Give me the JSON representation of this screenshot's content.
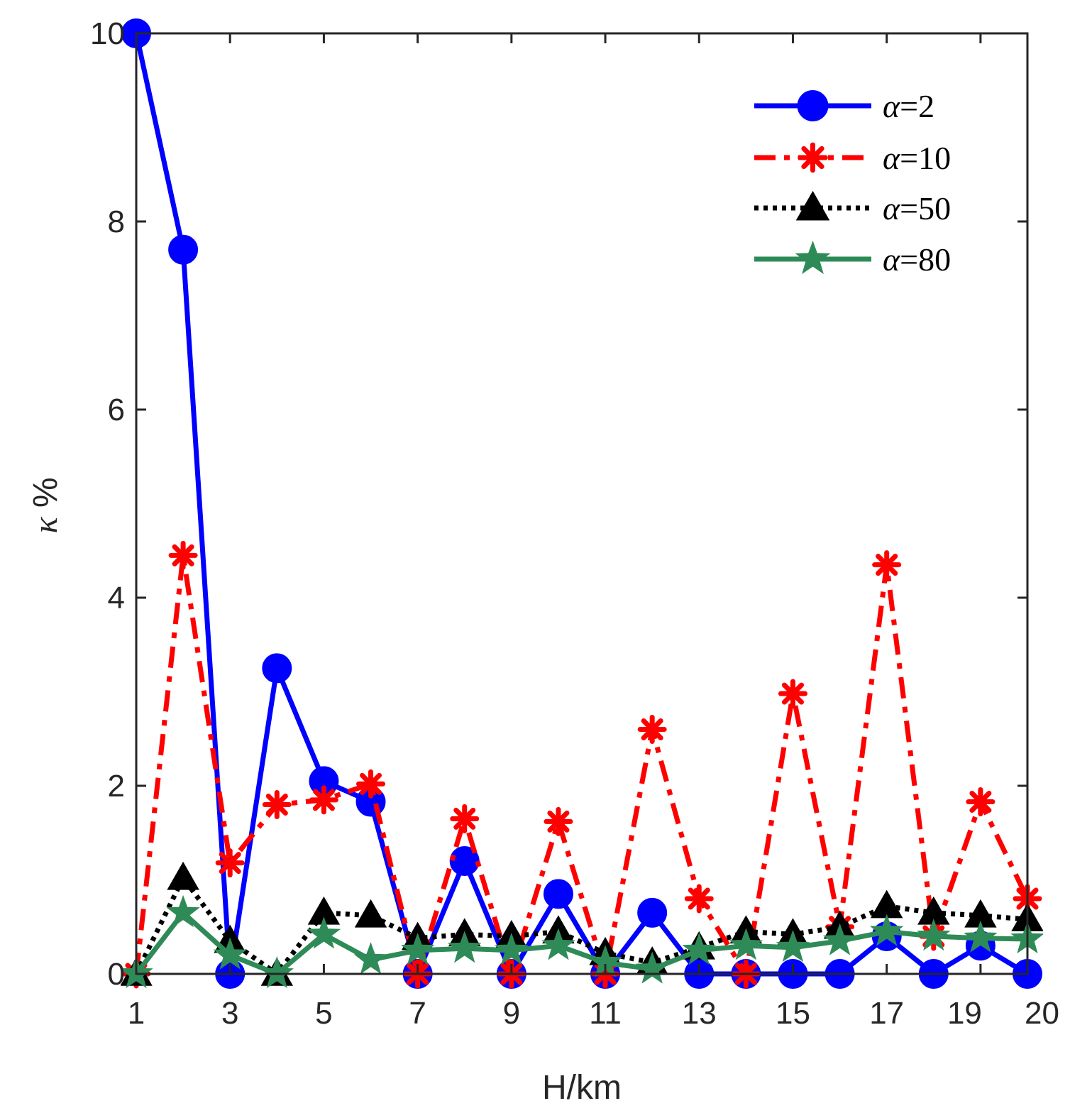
{
  "chart_data": {
    "type": "line",
    "xlabel": "H/km",
    "ylabel_symbol": "κ",
    "ylabel_unit": "%",
    "xlim": [
      1,
      20
    ],
    "ylim": [
      0,
      10
    ],
    "x_ticks": [
      1,
      3,
      5,
      7,
      9,
      11,
      13,
      15,
      17,
      19,
      20
    ],
    "x_tick_labels": [
      "1",
      "3",
      "5",
      "7",
      "9",
      "11",
      "13",
      "15",
      "17",
      "19",
      "20"
    ],
    "y_ticks": [
      0,
      2,
      4,
      6,
      8,
      10
    ],
    "y_tick_labels": [
      "0",
      "2",
      "4",
      "6",
      "8",
      "10"
    ],
    "grid": false,
    "legend_position": "top-right",
    "x": [
      1,
      2,
      3,
      4,
      5,
      6,
      7,
      8,
      9,
      10,
      11,
      12,
      13,
      14,
      15,
      16,
      17,
      18,
      19,
      20
    ],
    "series": [
      {
        "name": "α=2",
        "legend_var": "α",
        "legend_value": "=2",
        "color": "#0000FF",
        "dash": "solid",
        "marker": "circle",
        "values": [
          10.0,
          7.7,
          0.0,
          3.25,
          2.05,
          1.83,
          0.0,
          1.2,
          0.0,
          0.85,
          0.0,
          0.65,
          0.0,
          0.0,
          0.0,
          0.0,
          0.4,
          0.0,
          0.3,
          0.0
        ]
      },
      {
        "name": "α=10",
        "legend_var": "α",
        "legend_value": "=10",
        "color": "#FF0000",
        "dash": "dashdot",
        "marker": "asterisk",
        "values": [
          0.0,
          4.45,
          1.18,
          1.8,
          1.85,
          2.02,
          0.0,
          1.65,
          0.0,
          1.62,
          0.0,
          2.6,
          0.8,
          0.0,
          2.98,
          0.5,
          4.35,
          0.4,
          1.83,
          0.8
        ]
      },
      {
        "name": "α=50",
        "legend_var": "α",
        "legend_value": "=50",
        "color": "#000000",
        "dash": "dotted",
        "marker": "triangle",
        "values": [
          0.0,
          1.02,
          0.35,
          0.0,
          0.65,
          0.62,
          0.38,
          0.42,
          0.4,
          0.45,
          0.22,
          0.12,
          0.28,
          0.45,
          0.42,
          0.5,
          0.72,
          0.65,
          0.62,
          0.58
        ]
      },
      {
        "name": "α=80",
        "legend_var": "α",
        "legend_value": "=80",
        "color": "#2E8B57",
        "dash": "solid",
        "marker": "star",
        "values": [
          0.0,
          0.65,
          0.2,
          0.0,
          0.42,
          0.15,
          0.25,
          0.27,
          0.25,
          0.3,
          0.12,
          0.05,
          0.25,
          0.3,
          0.28,
          0.35,
          0.45,
          0.4,
          0.38,
          0.37
        ]
      }
    ]
  }
}
